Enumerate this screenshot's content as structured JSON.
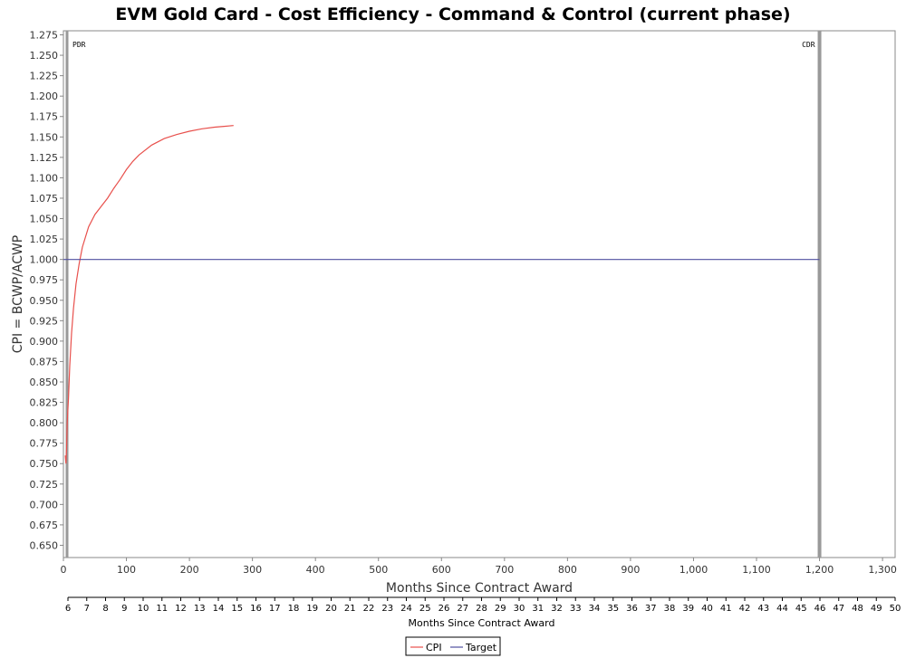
{
  "chart_data": {
    "type": "line",
    "title": "EVM Gold Card - Cost Efficiency - Command & Control (current phase)",
    "xlabel": "Months Since Contract Award",
    "ylabel": "CPI = BCWP/ACWP",
    "xlim": [
      0,
      1320
    ],
    "ylim": [
      0.635,
      1.28
    ],
    "x_ticks": [
      0,
      100,
      200,
      300,
      400,
      500,
      600,
      700,
      800,
      900,
      1000,
      1100,
      1200,
      1300
    ],
    "x_tick_labels": [
      "0",
      "100",
      "200",
      "300",
      "400",
      "500",
      "600",
      "700",
      "800",
      "900",
      "1,000",
      "1,100",
      "1,200",
      "1,300"
    ],
    "y_ticks": [
      0.65,
      0.675,
      0.7,
      0.725,
      0.75,
      0.775,
      0.8,
      0.825,
      0.85,
      0.875,
      0.9,
      0.925,
      0.95,
      0.975,
      1.0,
      1.025,
      1.05,
      1.075,
      1.1,
      1.125,
      1.15,
      1.175,
      1.2,
      1.225,
      1.25,
      1.275
    ],
    "y_tick_labels": [
      "0.650",
      "0.675",
      "0.700",
      "0.725",
      "0.750",
      "0.775",
      "0.800",
      "0.825",
      "0.850",
      "0.875",
      "0.900",
      "0.925",
      "0.950",
      "0.975",
      "1.000",
      "1.025",
      "1.050",
      "1.075",
      "1.100",
      "1.125",
      "1.150",
      "1.175",
      "1.200",
      "1.225",
      "1.250",
      "1.275"
    ],
    "grid": false,
    "legend_position": "bottom-center",
    "series": [
      {
        "name": "CPI",
        "color": "#e8504c",
        "x": [
          3,
          4,
          5,
          6,
          8,
          10,
          13,
          16,
          20,
          25,
          30,
          40,
          50,
          60,
          70,
          80,
          90,
          100,
          110,
          120,
          140,
          160,
          180,
          200,
          220,
          240,
          255,
          270
        ],
        "y": [
          0.76,
          0.75,
          0.77,
          0.8,
          0.83,
          0.87,
          0.91,
          0.94,
          0.97,
          0.995,
          1.015,
          1.04,
          1.055,
          1.065,
          1.075,
          1.087,
          1.098,
          1.11,
          1.12,
          1.128,
          1.14,
          1.148,
          1.153,
          1.157,
          1.16,
          1.162,
          1.163,
          1.164
        ]
      },
      {
        "name": "Target",
        "color": "#5050a0",
        "x": [
          0,
          1200
        ],
        "y": [
          1.0,
          1.0
        ]
      }
    ],
    "markers": [
      {
        "label": "PDR",
        "x": 0
      },
      {
        "label": "CDR",
        "x": 1200
      }
    ],
    "secondary_axis": {
      "label": "Months Since Contract Award",
      "range": [
        6,
        50
      ],
      "ticks": [
        6,
        7,
        8,
        9,
        10,
        11,
        12,
        13,
        14,
        15,
        16,
        17,
        18,
        19,
        20,
        21,
        22,
        23,
        24,
        25,
        26,
        27,
        28,
        29,
        30,
        31,
        32,
        33,
        34,
        35,
        36,
        37,
        38,
        39,
        40,
        41,
        42,
        43,
        44,
        45,
        46,
        47,
        48,
        49,
        50
      ]
    }
  }
}
